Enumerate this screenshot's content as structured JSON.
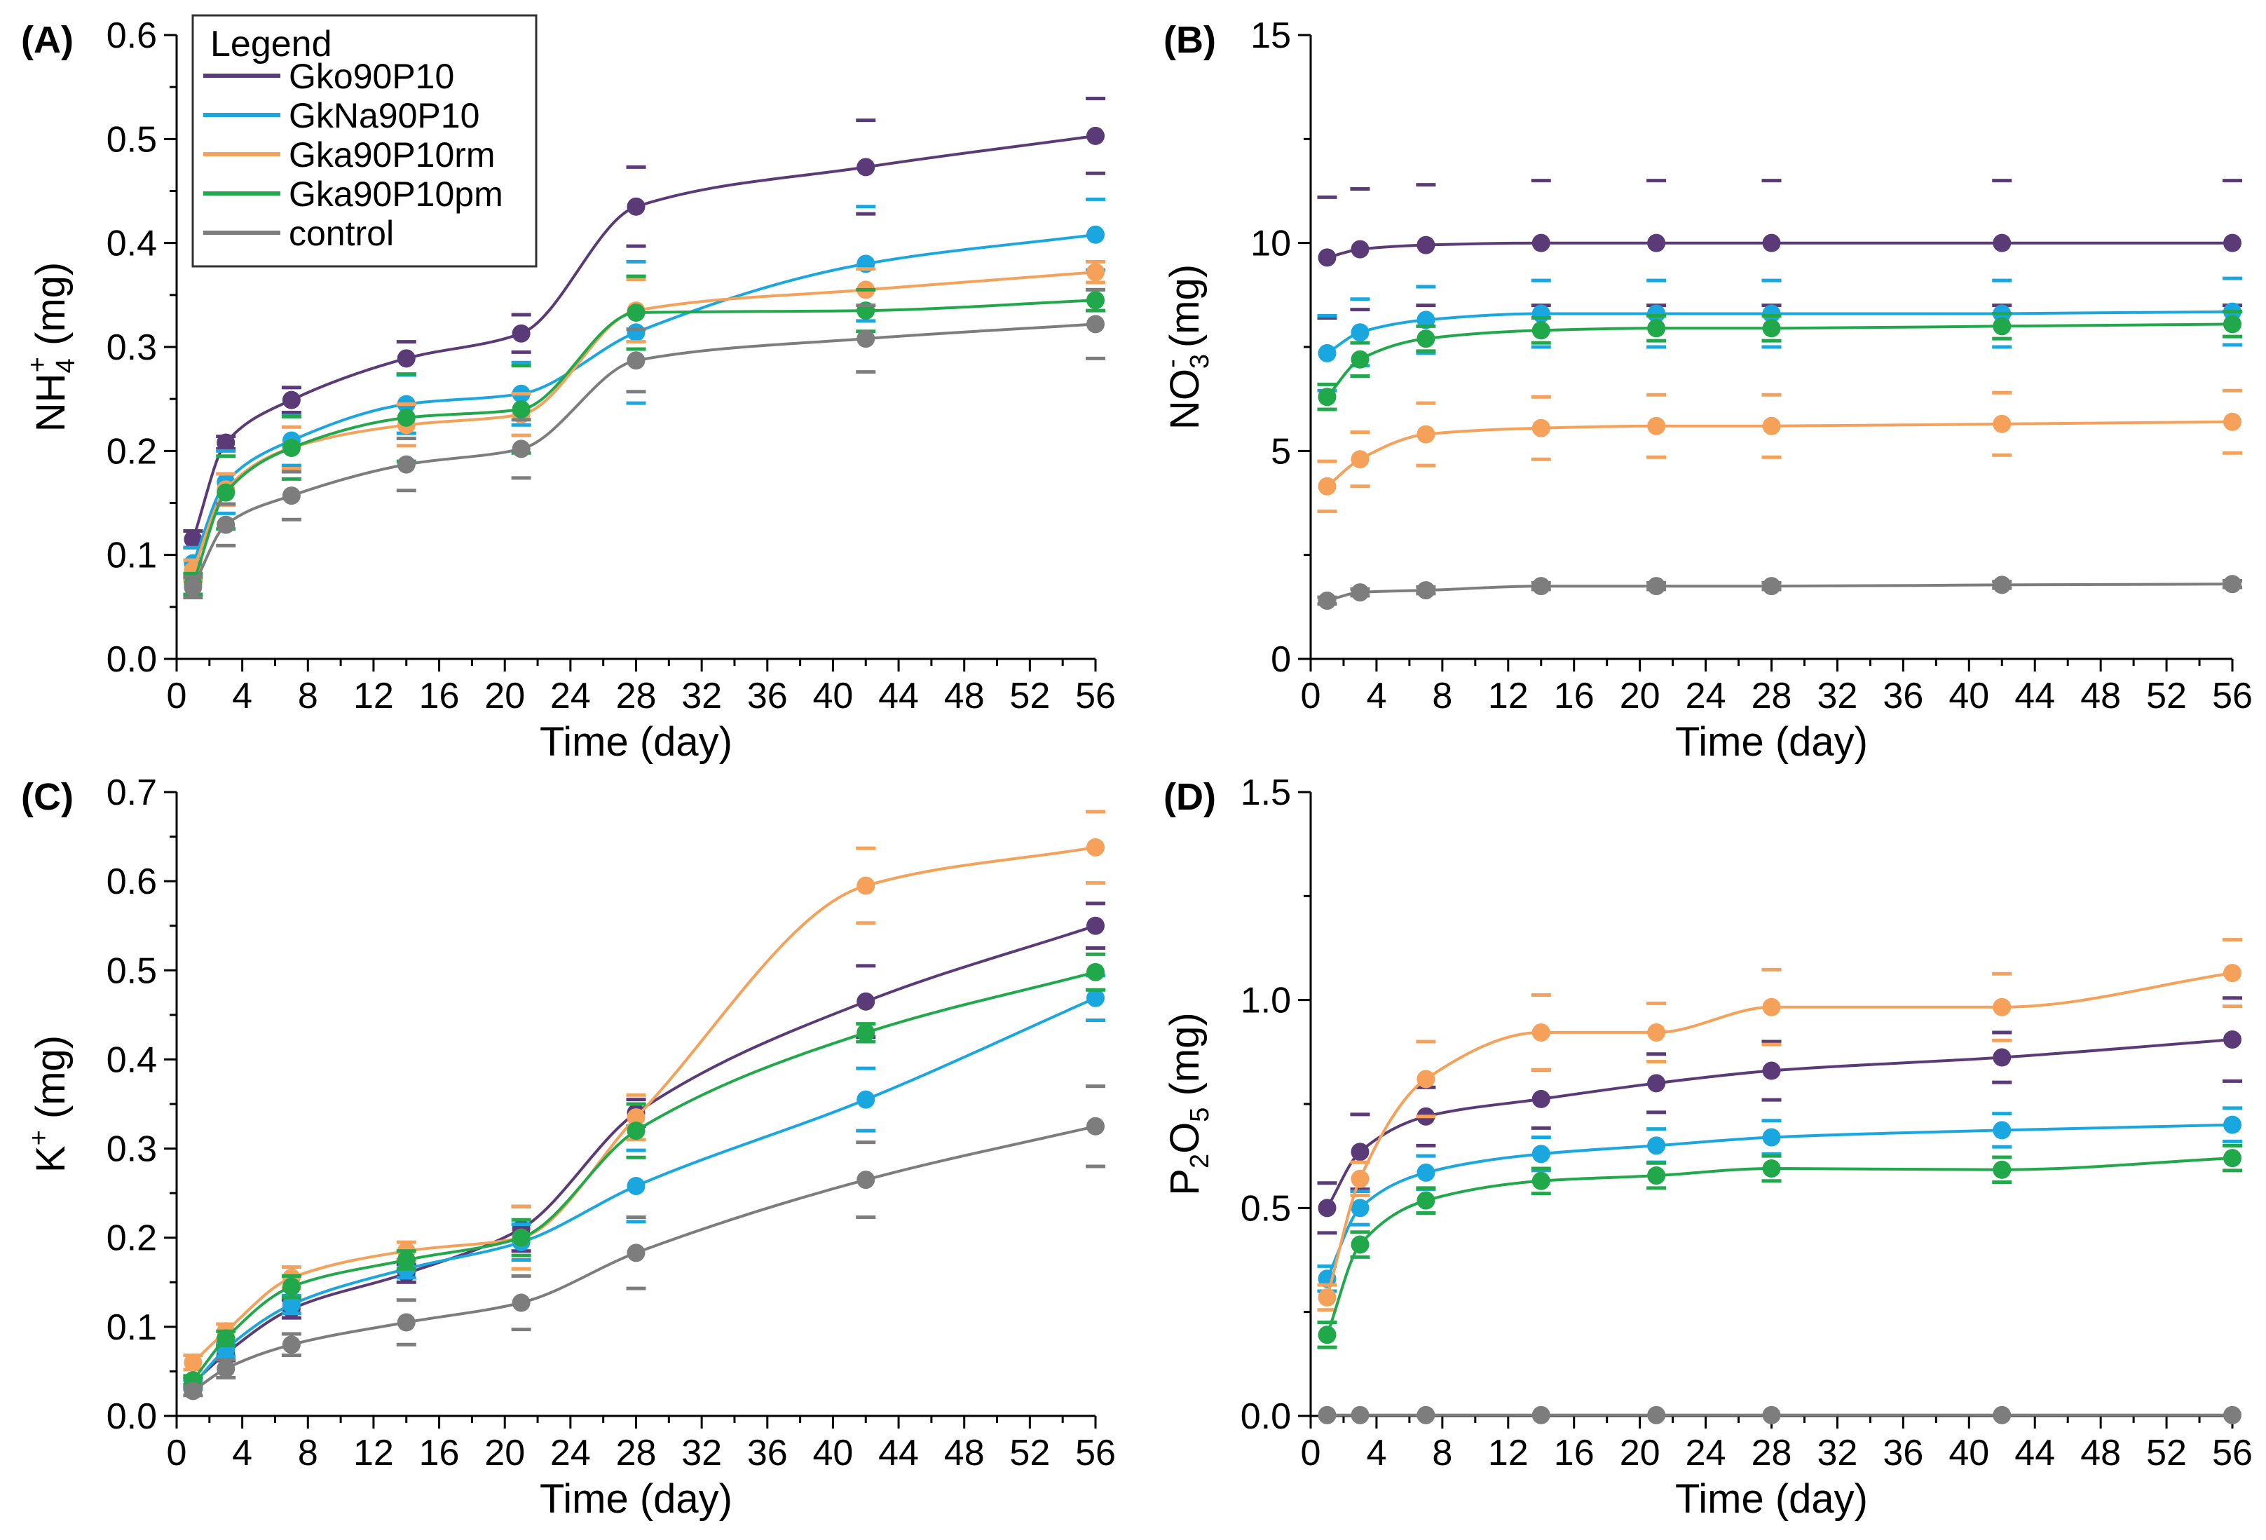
{
  "colors": {
    "Gko90P10": "#5b3a78",
    "GkNa90P10": "#1aa7df",
    "Gka90P10rm": "#f5a15a",
    "Gka90P10pm": "#21a84a",
    "control": "#7d7d7d"
  },
  "legend": {
    "title": "Legend",
    "entries": [
      "Gko90P10",
      "GkNa90P10",
      "Gka90P10rm",
      "Gka90P10pm",
      "control"
    ]
  },
  "chart_data": [
    {
      "type": "line",
      "panel_label": "(A)",
      "title": "",
      "xlabel": "Time (day)",
      "ylabel_parts": [
        "NH",
        "4",
        "+",
        " (mg)"
      ],
      "x": [
        1,
        3,
        7,
        14,
        21,
        28,
        42,
        56
      ],
      "xlim": [
        0,
        56
      ],
      "xticks": [
        0,
        4,
        8,
        12,
        16,
        20,
        24,
        28,
        32,
        36,
        40,
        44,
        48,
        52,
        56
      ],
      "xtick_labels": [
        "0",
        "4",
        "8",
        "12",
        "16",
        "20",
        "24",
        "28",
        "32",
        "36",
        "40",
        "44",
        "48",
        "52",
        "56"
      ],
      "ylim": [
        0,
        0.6
      ],
      "yticks": [
        0,
        0.1,
        0.2,
        0.3,
        0.4,
        0.5,
        0.6
      ],
      "ytick_labels": [
        "0.0",
        "0.1",
        "0.2",
        "0.3",
        "0.4",
        "0.5",
        "0.6"
      ],
      "series": [
        {
          "name": "Gko90P10",
          "values": [
            0.115,
            0.208,
            0.249,
            0.289,
            0.313,
            0.435,
            0.473,
            0.503
          ],
          "errors": [
            0.008,
            0.006,
            0.012,
            0.016,
            0.018,
            0.038,
            0.045,
            0.036
          ]
        },
        {
          "name": "GkNa90P10",
          "values": [
            0.092,
            0.17,
            0.21,
            0.245,
            0.255,
            0.314,
            0.38,
            0.408
          ],
          "errors": [
            0.015,
            0.03,
            0.024,
            0.028,
            0.03,
            0.068,
            0.055,
            0.034
          ]
        },
        {
          "name": "Gka90P10rm",
          "values": [
            0.085,
            0.163,
            0.203,
            0.225,
            0.235,
            0.335,
            0.355,
            0.372
          ],
          "errors": [
            0.01,
            0.015,
            0.02,
            0.02,
            0.02,
            0.03,
            0.02,
            0.01
          ]
        },
        {
          "name": "Gka90P10pm",
          "values": [
            0.072,
            0.16,
            0.203,
            0.232,
            0.24,
            0.333,
            0.335,
            0.345
          ],
          "errors": [
            0.01,
            0.035,
            0.03,
            0.042,
            0.042,
            0.035,
            0.02,
            0.01
          ]
        },
        {
          "name": "control",
          "values": [
            0.069,
            0.129,
            0.157,
            0.187,
            0.202,
            0.287,
            0.308,
            0.322
          ],
          "errors": [
            0.01,
            0.02,
            0.023,
            0.025,
            0.028,
            0.03,
            0.032,
            0.033
          ]
        }
      ]
    },
    {
      "type": "line",
      "panel_label": "(B)",
      "title": "",
      "xlabel": "Time (day)",
      "ylabel_parts": [
        "NO",
        "3",
        "-",
        " (mg)"
      ],
      "x": [
        1,
        3,
        7,
        14,
        21,
        28,
        42,
        56
      ],
      "xlim": [
        0,
        56
      ],
      "xticks": [
        0,
        4,
        8,
        12,
        16,
        20,
        24,
        28,
        32,
        36,
        40,
        44,
        48,
        52,
        56
      ],
      "xtick_labels": [
        "0",
        "4",
        "8",
        "12",
        "16",
        "20",
        "24",
        "28",
        "32",
        "36",
        "40",
        "44",
        "48",
        "52",
        "56"
      ],
      "ylim": [
        0,
        15
      ],
      "yticks": [
        0,
        5,
        10,
        15
      ],
      "ytick_labels": [
        "0",
        "5",
        "10",
        "15"
      ],
      "series": [
        {
          "name": "Gko90P10",
          "values": [
            9.65,
            9.85,
            9.95,
            10.0,
            10.0,
            10.0,
            10.0,
            10.0
          ],
          "errors": [
            1.45,
            1.45,
            1.45,
            1.5,
            1.5,
            1.5,
            1.5,
            1.5
          ]
        },
        {
          "name": "GkNa90P10",
          "values": [
            7.35,
            7.85,
            8.15,
            8.3,
            8.3,
            8.3,
            8.3,
            8.35
          ],
          "errors": [
            0.9,
            0.8,
            0.8,
            0.8,
            0.8,
            0.8,
            0.8,
            0.8
          ]
        },
        {
          "name": "Gka90P10rm",
          "values": [
            4.15,
            4.8,
            5.4,
            5.55,
            5.6,
            5.6,
            5.65,
            5.7
          ],
          "errors": [
            0.6,
            0.65,
            0.75,
            0.75,
            0.75,
            0.75,
            0.75,
            0.75
          ]
        },
        {
          "name": "Gka90P10pm",
          "values": [
            6.3,
            7.2,
            7.7,
            7.9,
            7.95,
            7.95,
            8.0,
            8.05
          ],
          "errors": [
            0.3,
            0.4,
            0.3,
            0.3,
            0.3,
            0.3,
            0.3,
            0.3
          ]
        },
        {
          "name": "control",
          "values": [
            1.4,
            1.6,
            1.65,
            1.75,
            1.75,
            1.75,
            1.78,
            1.8
          ],
          "errors": [
            0.08,
            0.08,
            0.08,
            0.08,
            0.08,
            0.08,
            0.08,
            0.08
          ]
        }
      ]
    },
    {
      "type": "line",
      "panel_label": "(C)",
      "title": "",
      "xlabel": "Time (day)",
      "ylabel_parts": [
        "K",
        "",
        "+",
        " (mg)"
      ],
      "x": [
        1,
        3,
        7,
        14,
        21,
        28,
        42,
        56
      ],
      "xlim": [
        0,
        56
      ],
      "xticks": [
        0,
        4,
        8,
        12,
        16,
        20,
        24,
        28,
        32,
        36,
        40,
        44,
        48,
        52,
        56
      ],
      "xtick_labels": [
        "0",
        "4",
        "8",
        "12",
        "16",
        "20",
        "24",
        "28",
        "32",
        "36",
        "40",
        "44",
        "48",
        "52",
        "56"
      ],
      "ylim": [
        0,
        0.7
      ],
      "yticks": [
        0,
        0.1,
        0.2,
        0.3,
        0.4,
        0.5,
        0.6,
        0.7
      ],
      "ytick_labels": [
        "0.0",
        "0.1",
        "0.2",
        "0.3",
        "0.4",
        "0.5",
        "0.6",
        "0.7"
      ],
      "series": [
        {
          "name": "Gko90P10",
          "values": [
            0.037,
            0.07,
            0.12,
            0.16,
            0.21,
            0.34,
            0.465,
            0.55
          ],
          "errors": [
            0.005,
            0.008,
            0.01,
            0.01,
            0.025,
            0.015,
            0.04,
            0.025
          ]
        },
        {
          "name": "GkNa90P10",
          "values": [
            0.035,
            0.075,
            0.125,
            0.165,
            0.195,
            0.258,
            0.355,
            0.469
          ],
          "errors": [
            0.005,
            0.008,
            0.01,
            0.01,
            0.02,
            0.04,
            0.035,
            0.025
          ]
        },
        {
          "name": "Gka90P10rm",
          "values": [
            0.06,
            0.095,
            0.155,
            0.185,
            0.2,
            0.335,
            0.595,
            0.638
          ],
          "errors": [
            0.008,
            0.008,
            0.012,
            0.01,
            0.035,
            0.025,
            0.042,
            0.04
          ]
        },
        {
          "name": "Gka90P10pm",
          "values": [
            0.04,
            0.087,
            0.145,
            0.175,
            0.2,
            0.32,
            0.43,
            0.498
          ],
          "errors": [
            0.005,
            0.008,
            0.012,
            0.01,
            0.02,
            0.03,
            0.01,
            0.02
          ]
        },
        {
          "name": "control",
          "values": [
            0.028,
            0.053,
            0.08,
            0.105,
            0.127,
            0.183,
            0.265,
            0.325
          ],
          "errors": [
            0.005,
            0.01,
            0.012,
            0.025,
            0.03,
            0.04,
            0.042,
            0.045
          ]
        }
      ]
    },
    {
      "type": "line",
      "panel_label": "(D)",
      "title": "",
      "xlabel": "Time (day)",
      "ylabel_parts": [
        "P",
        "2",
        "",
        "O",
        "5",
        " (mg)"
      ],
      "x": [
        1,
        3,
        7,
        14,
        21,
        28,
        42,
        56
      ],
      "xlim": [
        0,
        56
      ],
      "xticks": [
        0,
        4,
        8,
        12,
        16,
        20,
        24,
        28,
        32,
        36,
        40,
        44,
        48,
        52,
        56
      ],
      "xtick_labels": [
        "0",
        "4",
        "8",
        "12",
        "16",
        "20",
        "24",
        "28",
        "32",
        "36",
        "40",
        "44",
        "48",
        "52",
        "56"
      ],
      "ylim": [
        0,
        1.5
      ],
      "yticks": [
        0,
        0.5,
        1.0,
        1.5
      ],
      "ytick_labels": [
        "0.0",
        "0.5",
        "1.0",
        "1.5"
      ],
      "series": [
        {
          "name": "Gko90P10",
          "values": [
            0.5,
            0.635,
            0.72,
            0.762,
            0.8,
            0.83,
            0.862,
            0.905
          ],
          "errors": [
            0.06,
            0.09,
            0.07,
            0.07,
            0.07,
            0.07,
            0.06,
            0.1
          ]
        },
        {
          "name": "GkNa90P10",
          "values": [
            0.33,
            0.5,
            0.585,
            0.63,
            0.65,
            0.67,
            0.687,
            0.7
          ],
          "errors": [
            0.03,
            0.04,
            0.04,
            0.04,
            0.04,
            0.04,
            0.04,
            0.04
          ]
        },
        {
          "name": "Gka90P10rm",
          "values": [
            0.285,
            0.57,
            0.81,
            0.922,
            0.922,
            0.983,
            0.983,
            1.065
          ],
          "errors": [
            0.03,
            0.04,
            0.09,
            0.09,
            0.07,
            0.09,
            0.08,
            0.08
          ]
        },
        {
          "name": "Gka90P10pm",
          "values": [
            0.195,
            0.412,
            0.518,
            0.565,
            0.578,
            0.595,
            0.592,
            0.62
          ],
          "errors": [
            0.03,
            0.03,
            0.03,
            0.03,
            0.03,
            0.03,
            0.03,
            0.03
          ]
        },
        {
          "name": "control",
          "values": [
            0.002,
            0.002,
            0.002,
            0.002,
            0.002,
            0.002,
            0.002,
            0.002
          ],
          "errors": [
            0,
            0,
            0,
            0,
            0,
            0,
            0,
            0
          ]
        }
      ]
    }
  ]
}
